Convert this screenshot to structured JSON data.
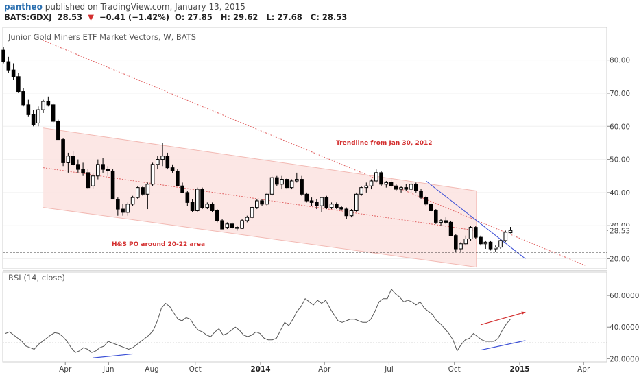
{
  "header": {
    "user": "pantheo",
    "published_text": "published on TradingView.com, January 13, 2015",
    "symbol": "BATS:GDXJ",
    "last": "28.53",
    "change_arrow": "▼",
    "change": "−0.41 (−1.42%)",
    "open_label": "O:",
    "open": "27.85",
    "high_label": "H:",
    "high": "29.62",
    "low_label": "L:",
    "low": "27.68",
    "close_label": "C:",
    "close": "28.53"
  },
  "colors": {
    "up_candle": "#ffffff",
    "down_candle": "#000000",
    "channel_fill": "#fbe3e0",
    "trendline_red": "#e06060",
    "trendline_blue": "#3b4fd6",
    "annotation_red": "#d32f2f",
    "rsi_line": "#555555"
  },
  "chart_data": [
    {
      "type": "candlestick",
      "title": "Junior Gold Miners ETF Market Vectors, W, BATS",
      "y_scale": "linear",
      "ylim": [
        17,
        88
      ],
      "yticks": [
        "20.00",
        "30.00",
        "40.00",
        "50.00",
        "60.00",
        "70.00",
        "80.00"
      ],
      "last_price_label": "28.53",
      "x_tick_labels": [
        "Apr",
        "Jun",
        "Aug",
        "Oct",
        "2014",
        "Apr",
        "Jul",
        "Oct",
        "2015",
        "Apr"
      ],
      "grid": true,
      "weeks_start": "2013-01-04",
      "candles": [
        [
          83,
          84,
          79,
          79.5
        ],
        [
          79.5,
          81,
          76,
          77
        ],
        [
          77,
          79,
          74,
          75
        ],
        [
          75,
          76,
          70,
          70.5
        ],
        [
          70.5,
          71.5,
          66,
          66.5
        ],
        [
          66.5,
          68,
          63,
          63.5
        ],
        [
          63.5,
          65,
          60,
          60.5
        ],
        [
          61,
          66,
          60,
          65
        ],
        [
          65,
          68,
          64,
          67.5
        ],
        [
          67.5,
          69,
          66,
          66.5
        ],
        [
          66.5,
          67,
          61,
          61.5
        ],
        [
          61.5,
          62,
          56,
          56
        ],
        [
          56,
          56.5,
          48,
          49
        ],
        [
          49,
          52,
          46,
          51
        ],
        [
          51,
          52.5,
          48,
          48.5
        ],
        [
          48.5,
          50,
          46,
          47
        ],
        [
          47,
          49,
          45,
          46
        ],
        [
          46,
          47,
          41,
          41.5
        ],
        [
          42,
          46,
          41,
          45
        ],
        [
          45,
          50,
          44,
          48.5
        ],
        [
          48.5,
          50.5,
          46,
          47
        ],
        [
          47,
          48,
          45,
          46.5
        ],
        [
          46.5,
          47,
          38,
          38
        ],
        [
          38,
          38.5,
          33,
          35
        ],
        [
          35,
          36.5,
          33,
          34
        ],
        [
          34,
          37,
          33,
          36.5
        ],
        [
          36.5,
          39,
          36,
          38.5
        ],
        [
          38.5,
          42,
          38,
          41.5
        ],
        [
          41.5,
          42,
          39,
          39.5
        ],
        [
          39.5,
          43,
          35,
          42.5
        ],
        [
          42.5,
          49,
          42,
          48.5
        ],
        [
          48.5,
          51,
          47,
          50
        ],
        [
          50,
          55,
          48,
          51
        ],
        [
          51,
          52,
          47,
          47.5
        ],
        [
          47.5,
          48.5,
          46,
          46.5
        ],
        [
          46.5,
          47,
          42,
          42
        ],
        [
          42,
          43,
          40,
          40
        ],
        [
          40,
          40.5,
          36,
          37
        ],
        [
          37,
          38,
          34,
          34.5
        ],
        [
          34.5,
          41.5,
          34,
          41
        ],
        [
          41,
          41.5,
          35,
          35.5
        ],
        [
          35.5,
          37,
          35,
          36.5
        ],
        [
          36.5,
          37,
          34,
          34.5
        ],
        [
          34.5,
          35,
          31,
          31.5
        ],
        [
          31.5,
          32,
          29,
          29
        ],
        [
          29.5,
          31,
          29,
          30.5
        ],
        [
          30.5,
          31,
          29,
          29.5
        ],
        [
          29.5,
          30,
          28.5,
          29.2
        ],
        [
          29.2,
          32,
          29,
          31.5
        ],
        [
          31.5,
          33,
          31,
          32.5
        ],
        [
          32.5,
          36,
          32,
          35.5
        ],
        [
          35.5,
          38,
          35,
          37.5
        ],
        [
          37.5,
          38,
          36,
          36.5
        ],
        [
          36.5,
          40,
          36,
          39.5
        ],
        [
          39.5,
          45,
          39,
          44.5
        ],
        [
          44.5,
          45,
          42,
          42.5
        ],
        [
          42.5,
          45,
          41,
          44
        ],
        [
          44,
          44.5,
          41,
          41.5
        ],
        [
          41.5,
          44,
          41,
          43.5
        ],
        [
          43.5,
          46,
          43,
          44
        ],
        [
          44,
          45,
          39,
          39.5
        ],
        [
          39.5,
          40,
          37,
          37.5
        ],
        [
          37.5,
          38.5,
          36,
          37
        ],
        [
          37,
          38,
          35,
          36
        ],
        [
          36,
          38.5,
          34,
          38.5
        ],
        [
          38.5,
          39,
          35,
          35.5
        ],
        [
          35.5,
          37,
          35,
          36.5
        ],
        [
          36.5,
          37,
          35,
          35.5
        ],
        [
          35.5,
          36,
          34.5,
          35
        ],
        [
          35,
          35.5,
          32,
          33
        ],
        [
          33,
          35,
          32.5,
          34.5
        ],
        [
          34.5,
          40,
          34,
          39.5
        ],
        [
          39.5,
          42,
          39,
          41.5
        ],
        [
          41.5,
          43,
          40,
          42
        ],
        [
          42,
          44,
          41,
          43.5
        ],
        [
          43.5,
          47,
          43,
          46
        ],
        [
          46,
          46.5,
          42,
          42.5
        ],
        [
          42.5,
          43.5,
          41.5,
          43
        ],
        [
          43,
          44,
          41.5,
          42
        ],
        [
          42,
          42.5,
          40.5,
          41
        ],
        [
          41,
          42,
          40,
          41.5
        ],
        [
          41.5,
          42.5,
          40.5,
          41
        ],
        [
          41,
          43,
          40,
          42.5
        ],
        [
          42.5,
          43,
          40,
          40.5
        ],
        [
          40.5,
          41,
          38,
          38.5
        ],
        [
          38.5,
          39,
          36,
          36.5
        ],
        [
          36.5,
          37,
          34,
          34.5
        ],
        [
          34.5,
          35,
          30.5,
          31
        ],
        [
          31,
          32,
          30,
          31.5
        ],
        [
          31.5,
          32.5,
          30.5,
          31
        ],
        [
          31,
          31.5,
          27,
          27
        ],
        [
          27,
          27.5,
          22,
          23
        ],
        [
          23,
          25,
          22,
          24.5
        ],
        [
          24.5,
          27,
          24,
          26
        ],
        [
          26,
          30,
          25.5,
          29.5
        ],
        [
          29.5,
          30,
          26,
          26.5
        ],
        [
          26.5,
          27,
          24,
          24.5
        ],
        [
          24.5,
          25.5,
          23,
          25
        ],
        [
          25,
          25.5,
          22.5,
          23
        ],
        [
          23,
          24,
          22,
          23.5
        ],
        [
          23.5,
          26,
          23,
          25.5
        ],
        [
          25.5,
          28.5,
          25,
          28
        ],
        [
          27.85,
          29.62,
          27.68,
          28.53
        ]
      ],
      "channel": {
        "upper": [
          [
            "2013-03-01",
            59.5
          ],
          [
            "2014-11-01",
            40.5
          ]
        ],
        "mid": [
          [
            "2013-03-01",
            47.5
          ],
          [
            "2014-11-01",
            28.5
          ]
        ],
        "lower": [
          [
            "2013-03-01",
            35.5
          ],
          [
            "2014-11-01",
            17.5
          ]
        ]
      },
      "trendline_from_jan_2012": [
        [
          "2013-02-28",
          86
        ],
        [
          "2015-04-03",
          18
        ]
      ],
      "blue_trendline": [
        [
          "2014-08-22",
          43.5
        ],
        [
          "2015-01-09",
          20
        ]
      ],
      "support_level": 22,
      "annotations": [
        {
          "text": "Trendline from Jan 30, 2012",
          "anchor": "above the channel, around Jul–Aug 2014"
        },
        {
          "text": "H&S PO around 20-22 area",
          "anchor": "left end of the support line, near Jul 2013"
        }
      ]
    },
    {
      "type": "line",
      "title": "RSI (14, close)",
      "ylim": [
        18,
        70
      ],
      "yticks": [
        "20.0000",
        "40.0000",
        "60.0000"
      ],
      "reference_line": 30,
      "values": [
        36,
        37,
        35,
        33,
        31,
        28,
        27,
        26,
        29,
        31,
        33,
        35,
        36.5,
        36,
        34,
        31,
        27,
        24,
        25,
        27,
        26,
        24,
        25,
        27,
        28,
        31,
        30,
        29,
        28,
        27,
        26,
        27,
        29,
        31,
        33,
        35,
        38,
        44,
        52,
        55,
        53,
        49,
        45,
        44,
        46,
        45,
        41,
        38,
        37,
        35,
        34,
        37,
        39,
        35,
        36,
        38,
        40,
        38,
        35,
        34,
        35,
        37,
        36,
        33,
        32,
        32,
        33,
        38,
        43,
        41,
        45,
        50,
        53,
        58,
        56,
        54,
        57,
        55,
        57,
        52,
        48,
        44,
        43,
        44,
        45,
        45,
        44,
        43,
        43,
        45,
        50,
        56,
        58,
        58,
        64,
        61,
        59,
        56,
        57,
        56,
        54,
        56,
        52,
        50,
        48,
        44,
        42,
        39,
        36,
        32,
        25,
        29,
        32,
        33,
        36,
        34,
        32,
        31,
        31,
        31,
        33,
        38,
        42,
        45
      ],
      "divergence_lines": [
        {
          "color": "blue",
          "from": [
            "2013-05-10",
            20.5
          ],
          "to": [
            "2013-07-05",
            23
          ]
        },
        {
          "color": "blue",
          "from": [
            "2014-11-07",
            25.5
          ],
          "to": [
            "2015-01-09",
            31.5
          ]
        },
        {
          "color": "red",
          "from": [
            "2014-11-07",
            41.5
          ],
          "to": [
            "2015-01-09",
            49.5
          ]
        }
      ]
    }
  ]
}
